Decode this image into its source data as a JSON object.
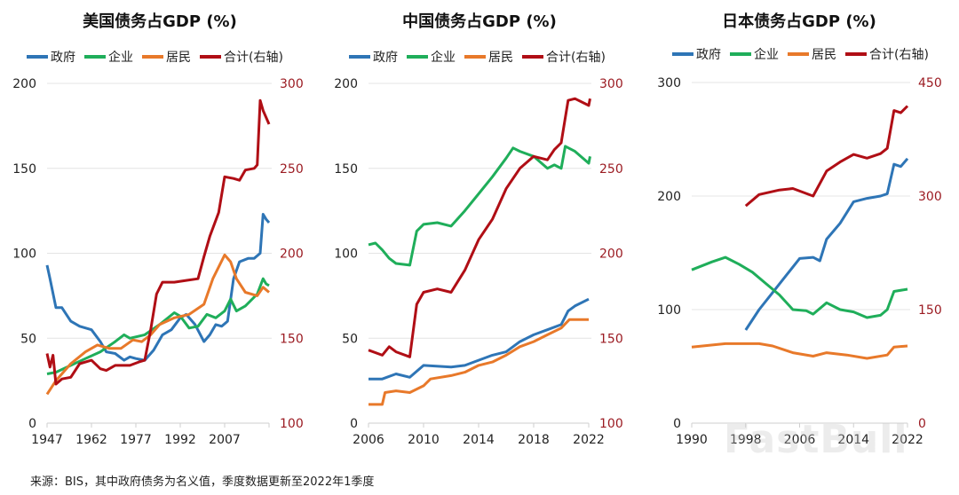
{
  "colors": {
    "gov": "#2e75b6",
    "corp": "#1fae5a",
    "hh": "#e8792a",
    "total": "#b00e15",
    "right_axis": "#9b1b22",
    "grid": "#e4e4e4"
  },
  "legend": [
    "政府",
    "企业",
    "居民",
    "合计(右轴)"
  ],
  "footer": "来源：BIS，其中政府债务为名义值，季度数据更新至2022年1季度",
  "watermark": "FastBull",
  "chart_data": [
    {
      "type": "line",
      "title": "美国债务占GDP (%)",
      "xticks": [
        1947,
        1962,
        1977,
        1992,
        2007
      ],
      "xlim": [
        1947,
        2022
      ],
      "ylim": [
        0,
        200
      ],
      "yticks": [
        0,
        50,
        100,
        150,
        200
      ],
      "y2lim": [
        100,
        300
      ],
      "y2ticks": [
        100,
        150,
        200,
        250,
        300
      ],
      "series": [
        {
          "name": "政府",
          "axis": "left",
          "x": [
            1947,
            1948,
            1950,
            1952,
            1955,
            1958,
            1962,
            1965,
            1967,
            1970,
            1973,
            1975,
            1977,
            1980,
            1983,
            1986,
            1989,
            1992,
            1994,
            1997,
            2000,
            2002,
            2004,
            2006,
            2008,
            2010,
            2012,
            2015,
            2017,
            2019,
            2020,
            2021,
            2022
          ],
          "y": [
            93,
            85,
            68,
            68,
            60,
            57,
            55,
            48,
            42,
            41,
            37,
            39,
            38,
            37,
            43,
            52,
            55,
            62,
            64,
            58,
            48,
            52,
            58,
            57,
            60,
            85,
            95,
            97,
            97,
            100,
            123,
            120,
            118
          ]
        },
        {
          "name": "企业",
          "axis": "left",
          "x": [
            1947,
            1950,
            1955,
            1960,
            1965,
            1970,
            1973,
            1975,
            1980,
            1985,
            1990,
            1992,
            1995,
            1998,
            2001,
            2004,
            2007,
            2009,
            2011,
            2014,
            2018,
            2020,
            2021,
            2022
          ],
          "y": [
            29,
            30,
            34,
            38,
            42,
            48,
            52,
            50,
            52,
            58,
            65,
            63,
            56,
            57,
            64,
            62,
            66,
            73,
            66,
            69,
            76,
            85,
            82,
            81
          ]
        },
        {
          "name": "居民",
          "axis": "left",
          "x": [
            1947,
            1950,
            1955,
            1960,
            1964,
            1968,
            1972,
            1976,
            1979,
            1982,
            1985,
            1990,
            1995,
            2000,
            2003,
            2007,
            2009,
            2011,
            2014,
            2018,
            2020,
            2022
          ],
          "y": [
            17,
            25,
            35,
            42,
            46,
            44,
            44,
            49,
            48,
            52,
            58,
            62,
            64,
            70,
            85,
            99,
            95,
            85,
            77,
            75,
            80,
            77
          ]
        },
        {
          "name": "合计(右轴)",
          "axis": "right",
          "x": [
            1947,
            1948,
            1949,
            1950,
            1952,
            1955,
            1958,
            1962,
            1965,
            1967,
            1970,
            1975,
            1978,
            1980,
            1982,
            1984,
            1986,
            1990,
            1994,
            1998,
            2000,
            2002,
            2005,
            2007,
            2010,
            2012,
            2014,
            2017,
            2018,
            2019,
            2020,
            2022
          ],
          "y": [
            141,
            133,
            140,
            123,
            126,
            127,
            135,
            137,
            132,
            131,
            134,
            134,
            136,
            137,
            155,
            176,
            183,
            183,
            184,
            185,
            198,
            210,
            224,
            245,
            244,
            243,
            249,
            250,
            252,
            290,
            284,
            276
          ]
        }
      ]
    },
    {
      "type": "line",
      "title": "中国债务占GDP (%)",
      "xticks": [
        2006,
        2010,
        2014,
        2018,
        2022
      ],
      "xlim": [
        2006,
        2022
      ],
      "ylim": [
        0,
        200
      ],
      "yticks": [
        0,
        50,
        100,
        150,
        200
      ],
      "y2lim": [
        100,
        300
      ],
      "y2ticks": [
        100,
        150,
        200,
        250,
        300
      ],
      "series": [
        {
          "name": "政府",
          "axis": "left",
          "x": [
            2006,
            2007,
            2008,
            2009,
            2010,
            2012,
            2013,
            2014,
            2015,
            2016,
            2017,
            2018,
            2019,
            2020,
            2020.5,
            2021,
            2022
          ],
          "y": [
            26,
            26,
            29,
            27,
            34,
            33,
            34,
            37,
            40,
            42,
            48,
            52,
            55,
            58,
            66,
            69,
            73
          ]
        },
        {
          "name": "企业",
          "axis": "left",
          "x": [
            2006,
            2006.5,
            2007,
            2007.5,
            2008,
            2009,
            2009.5,
            2010,
            2011,
            2012,
            2013,
            2014,
            2015,
            2016,
            2016.5,
            2017,
            2018,
            2019,
            2019.5,
            2020,
            2020.3,
            2021,
            2022,
            2022.1
          ],
          "y": [
            105,
            106,
            102,
            97,
            94,
            93,
            113,
            117,
            118,
            116,
            125,
            135,
            145,
            156,
            162,
            160,
            157,
            150,
            152,
            150,
            163,
            160,
            153,
            157
          ]
        },
        {
          "name": "居民",
          "axis": "left",
          "x": [
            2006,
            2007,
            2007.2,
            2008,
            2009,
            2010,
            2010.5,
            2012,
            2013,
            2014,
            2015,
            2016,
            2017,
            2018,
            2019,
            2020,
            2020.6,
            2022
          ],
          "y": [
            11,
            11,
            18,
            19,
            18,
            22,
            26,
            28,
            30,
            34,
            36,
            40,
            45,
            48,
            52,
            56,
            61,
            61
          ]
        },
        {
          "name": "合计(右轴)",
          "axis": "right",
          "x": [
            2006,
            2007,
            2007.5,
            2008,
            2009,
            2009.5,
            2010,
            2011,
            2012,
            2013,
            2014,
            2015,
            2016,
            2017,
            2018,
            2019,
            2019.5,
            2020,
            2020.5,
            2021,
            2022,
            2022.1
          ],
          "y": [
            143,
            140,
            145,
            142,
            139,
            170,
            177,
            179,
            177,
            190,
            208,
            220,
            238,
            250,
            257,
            255,
            261,
            265,
            290,
            291,
            287,
            291
          ]
        }
      ]
    },
    {
      "type": "line",
      "title": "日本债务占GDP (%)",
      "xticks": [
        1990,
        1998,
        2006,
        2014,
        2022
      ],
      "xlim": [
        1990,
        2022
      ],
      "ylim": [
        0,
        300
      ],
      "yticks": [
        0,
        100,
        200,
        300
      ],
      "y2lim": [
        0,
        450
      ],
      "y2ticks": [
        0,
        150,
        300,
        450
      ],
      "series": [
        {
          "name": "政府",
          "axis": "left",
          "x": [
            1998,
            2000,
            2002,
            2004,
            2006,
            2008,
            2009,
            2010,
            2012,
            2014,
            2016,
            2018,
            2019,
            2020,
            2021,
            2022
          ],
          "y": [
            82,
            100,
            115,
            130,
            145,
            146,
            143,
            162,
            176,
            195,
            198,
            200,
            202,
            228,
            226,
            233
          ]
        },
        {
          "name": "企业",
          "axis": "left",
          "x": [
            1990,
            1993,
            1995,
            1997,
            1999,
            2001,
            2003,
            2005,
            2007,
            2008,
            2010,
            2012,
            2014,
            2016,
            2018,
            2019,
            2020,
            2022
          ],
          "y": [
            135,
            142,
            146,
            140,
            133,
            123,
            113,
            100,
            99,
            96,
            106,
            100,
            98,
            93,
            95,
            100,
            116,
            118
          ]
        },
        {
          "name": "居民",
          "axis": "left",
          "x": [
            1990,
            1995,
            2000,
            2002,
            2005,
            2008,
            2010,
            2013,
            2016,
            2019,
            2020,
            2022
          ],
          "y": [
            67,
            70,
            70,
            68,
            62,
            59,
            62,
            60,
            57,
            60,
            67,
            68
          ]
        },
        {
          "name": "合计(右轴)",
          "axis": "right",
          "x": [
            1998,
            2000,
            2003,
            2005,
            2008,
            2010,
            2012,
            2014,
            2016,
            2018,
            2019,
            2020,
            2021,
            2022
          ],
          "y": [
            287,
            302,
            308,
            310,
            300,
            333,
            345,
            355,
            350,
            356,
            363,
            413,
            410,
            419
          ]
        }
      ]
    }
  ]
}
